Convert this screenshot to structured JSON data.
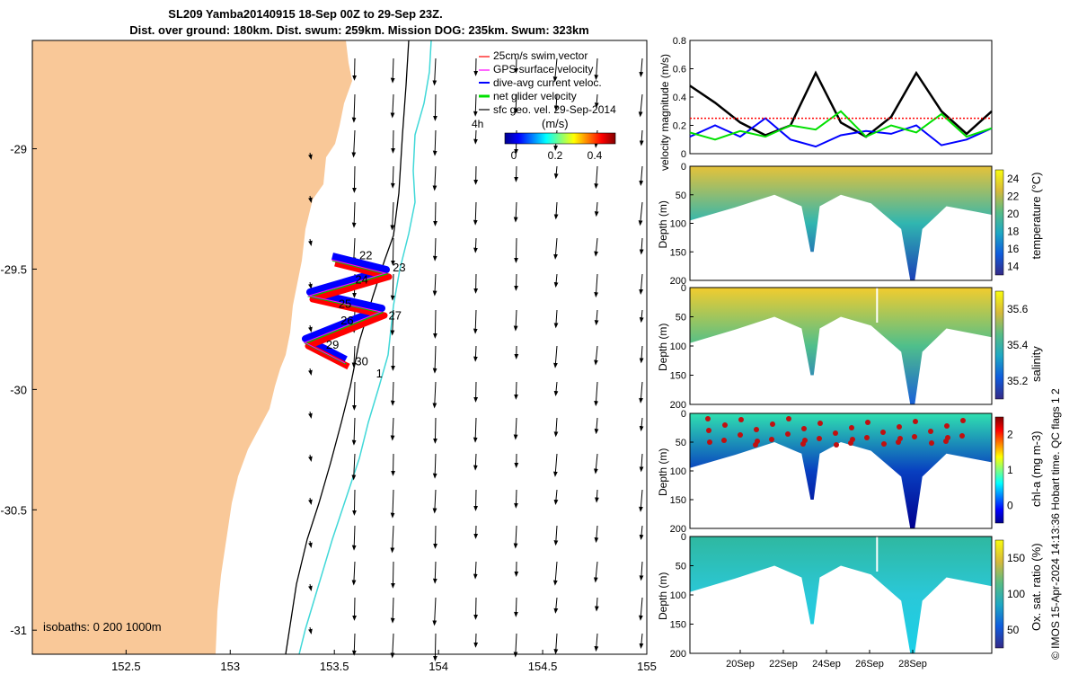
{
  "header": {
    "title_line1": "SL209 Yamba20140915 18-Sep 00Z to 29-Sep 23Z.",
    "title_line2": "Dist. over ground: 180km. Dist. swum: 259km. Mission DOG: 235km. Swum: 323km"
  },
  "credit": "© IMOS 15-Apr-2024 14:13:36 Hobart time. QC flags 1  2",
  "colors": {
    "land": "#f9c898",
    "coast_isobath": "#000000",
    "isobath_1000": "#40d8d8",
    "swim_vector": "#ff0000",
    "gps_velocity": "#ff00ff",
    "dive_avg_current": "#0000ff",
    "net_glider": "#00e000",
    "sfc_geo_vel": "#000000"
  },
  "chart_data": [
    {
      "type": "scatter",
      "panel": "map",
      "xticks": [
        "152.5",
        "153",
        "153.5",
        "154",
        "154.5",
        "155"
      ],
      "yticks": [
        "-29",
        "-29.5",
        "-30",
        "-30.5",
        "-31"
      ],
      "xlim": [
        152.05,
        155.0
      ],
      "ylim": [
        -31.1,
        -28.55
      ],
      "legend": {
        "position": "top-right",
        "entries": [
          "25cm/s swim vector",
          "GPS surface velocity",
          "dive-avg current veloc.",
          "net glider velocity",
          "sfc geo. vel. 29-Sep-2014"
        ],
        "time_label": "4h"
      },
      "colorbar": {
        "label": "(m/s)",
        "ticks": [
          "0",
          "0.2",
          "0.4"
        ],
        "range": [
          0,
          0.5
        ]
      },
      "isobaths_label": "isobaths: 0   200  1000m",
      "day_labels": [
        {
          "text": "22",
          "lon": 153.62,
          "lat": -29.46
        },
        {
          "text": "23",
          "lon": 153.78,
          "lat": -29.51
        },
        {
          "text": "24",
          "lon": 153.6,
          "lat": -29.56
        },
        {
          "text": "25",
          "lon": 153.52,
          "lat": -29.66
        },
        {
          "text": "26",
          "lon": 153.53,
          "lat": -29.73
        },
        {
          "text": "27",
          "lon": 153.76,
          "lat": -29.71
        },
        {
          "text": "29",
          "lon": 153.46,
          "lat": -29.83
        },
        {
          "text": "30",
          "lon": 153.6,
          "lat": -29.9
        },
        {
          "text": "1",
          "lon": 153.7,
          "lat": -29.95
        }
      ]
    },
    {
      "type": "line",
      "panel": "velocity",
      "ylabel": "velocity magnitude (m/s)",
      "yticks": [
        "0",
        "0.2",
        "0.4",
        "0.6",
        "0.8"
      ],
      "ylim": [
        0,
        0.8
      ],
      "x": [
        "18-Sep",
        "19-Sep",
        "20-Sep",
        "21-Sep",
        "22-Sep",
        "23-Sep",
        "24-Sep",
        "25-Sep",
        "26-Sep",
        "27-Sep",
        "28-Sep",
        "29-Sep",
        "30-Sep"
      ],
      "series": [
        {
          "name": "",
          "color": "#000000",
          "values": [
            0.48,
            0.36,
            0.22,
            0.13,
            0.2,
            0.57,
            0.22,
            0.12,
            0.26,
            0.57,
            0.3,
            0.14,
            0.3
          ]
        },
        {
          "name": "",
          "color": "#0000ff",
          "values": [
            0.12,
            0.2,
            0.12,
            0.25,
            0.1,
            0.05,
            0.13,
            0.16,
            0.14,
            0.2,
            0.06,
            0.1,
            0.18
          ]
        },
        {
          "name": "",
          "color": "#00e000",
          "values": [
            0.15,
            0.1,
            0.16,
            0.12,
            0.2,
            0.17,
            0.3,
            0.12,
            0.2,
            0.15,
            0.28,
            0.12,
            0.18
          ]
        },
        {
          "name": "",
          "color": "#ff0000",
          "values": [
            0.25,
            0.25,
            0.25,
            0.25,
            0.25,
            0.25,
            0.25,
            0.25,
            0.25,
            0.25,
            0.25,
            0.25,
            0.25
          ]
        }
      ]
    },
    {
      "type": "heatmap",
      "panel": "temperature",
      "ylabel": "Depth (m)",
      "colorbar_label": "temperature (°C)",
      "colorbar_ticks": [
        "14",
        "16",
        "18",
        "20",
        "22",
        "24"
      ],
      "yticks": [
        "0",
        "50",
        "100",
        "150",
        "200"
      ]
    },
    {
      "type": "heatmap",
      "panel": "salinity",
      "ylabel": "Depth (m)",
      "colorbar_label": "salinity",
      "colorbar_ticks": [
        "35.2",
        "35.4",
        "35.6"
      ],
      "yticks": [
        "0",
        "50",
        "100",
        "150",
        "200"
      ]
    },
    {
      "type": "heatmap",
      "panel": "chl-a",
      "ylabel": "Depth (m)",
      "colorbar_label": "chl-a (mg m-3)",
      "colorbar_ticks": [
        "0",
        "1",
        "2"
      ],
      "yticks": [
        "0",
        "50",
        "100",
        "150",
        "200"
      ]
    },
    {
      "type": "heatmap",
      "panel": "oxygen",
      "ylabel": "Depth (m)",
      "colorbar_label": "Ox. sat. ratio (%)",
      "colorbar_ticks": [
        "50",
        "100",
        "150"
      ],
      "yticks": [
        "0",
        "50",
        "100",
        "150",
        "200"
      ],
      "xticks": [
        "20Sep",
        "22Sep",
        "24Sep",
        "26Sep",
        "28Sep"
      ]
    }
  ]
}
